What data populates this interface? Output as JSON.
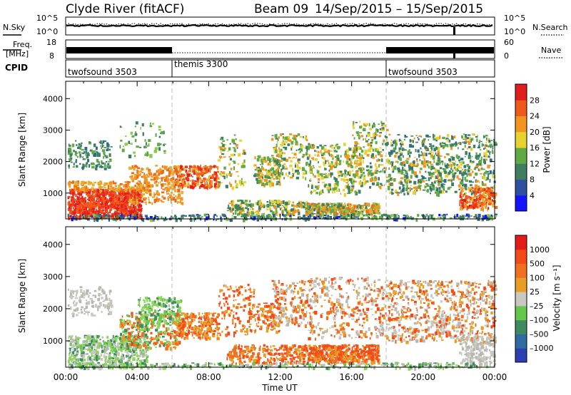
{
  "header": {
    "title": "Clyde River (fitACF)",
    "beam": "Beam 09",
    "date_range": "14/Sep/2015 – 15/Sep/2015"
  },
  "top_panels": {
    "nsky_label": "N.Sky",
    "nsearch_label": "N.Search",
    "noise_ticks": [
      "10^5",
      "10^0"
    ],
    "freq_label": "Freq.",
    "freq_unit": "[MHz]",
    "freq_ticks": [
      "18",
      "8"
    ],
    "nave_label": "Nave",
    "nave_ticks": [
      "60",
      "0"
    ],
    "cpid_label": "CPID",
    "cpid_segments": [
      {
        "name": "twofsound 3503",
        "start_h": 0,
        "end_h": 6
      },
      {
        "name": "themis 3300",
        "start_h": 6,
        "end_h": 18
      },
      {
        "name": "twofsound 3503",
        "start_h": 18,
        "end_h": 24
      }
    ]
  },
  "chart_data": [
    {
      "type": "heatmap",
      "name": "power",
      "ylabel": "Slant Range [km]",
      "yticks": [
        "1000",
        "2000",
        "3000",
        "4000"
      ],
      "ylim": [
        180,
        4550
      ],
      "xlim_hours": [
        0,
        24
      ],
      "colorbar_label": "Power [dB]",
      "colorbar_ticks": [
        "4",
        "8",
        "12",
        "16",
        "20",
        "24",
        "28"
      ],
      "colorbar_colors": [
        "#1414ff",
        "#2f4fa0",
        "#3f7f60",
        "#5faa45",
        "#e8d230",
        "#f29420",
        "#ee5a1a",
        "#e01e1e"
      ]
    },
    {
      "type": "heatmap",
      "name": "velocity",
      "ylabel": "Slant Range [km]",
      "yticks": [
        "1000",
        "2000",
        "3000",
        "4000"
      ],
      "ylim": [
        180,
        4550
      ],
      "xlim_hours": [
        0,
        24
      ],
      "xticks": [
        "00:00",
        "04:00",
        "08:00",
        "12:00",
        "16:00",
        "20:00",
        "00:00"
      ],
      "xlabel": "Time UT",
      "colorbar_label": "Velocity [m s⁻¹]",
      "colorbar_ticks": [
        "1000",
        "500",
        "100",
        "25",
        "–25",
        "–100",
        "–500",
        "–1000"
      ],
      "colorbar_colors": [
        "#2a3fb0",
        "#2f6aa0",
        "#3f8a60",
        "#66c84a",
        "#c8c8c0",
        "#e89e25",
        "#f07020",
        "#f24a18",
        "#e41b1b"
      ]
    }
  ]
}
